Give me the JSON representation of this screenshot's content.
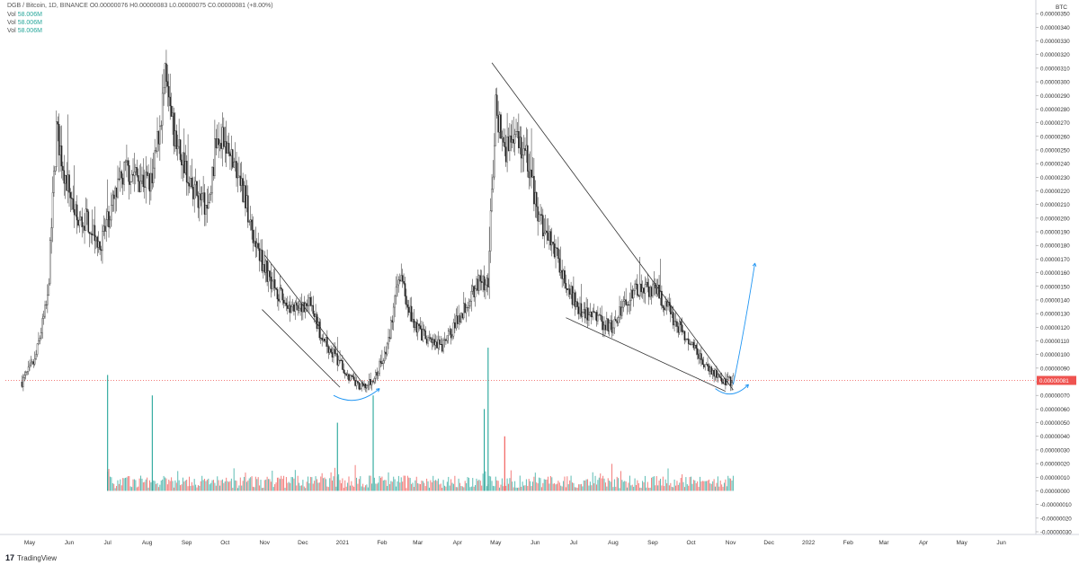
{
  "header": {
    "symbol_line": "DGB / Bitcoin, 1D, BINANCE",
    "ohlc": "O0.00000076  H0.00000083  L0.00000075  C0.00000081  (+8.00%)",
    "vol_rows": [
      {
        "label": "Vol",
        "value": "58.006M"
      },
      {
        "label": "Vol",
        "value": "58.006M"
      },
      {
        "label": "Vol",
        "value": "58.006M"
      }
    ]
  },
  "branding": {
    "logo": "17",
    "name": "TradingView"
  },
  "colors": {
    "up": "#26a69a",
    "down": "#ef5350",
    "candle": "#222222",
    "annotation": "#2196f3",
    "price_label": "#ef5350",
    "trendline": "#333333"
  },
  "chart_data": {
    "type": "candlestick",
    "quote_currency": "BTC",
    "price_axis": {
      "min": -3e-07,
      "max": 3.6e-06,
      "ticks": [
        "0.00000350",
        "0.00000340",
        "0.00000330",
        "0.00000320",
        "0.00000310",
        "0.00000300",
        "0.00000290",
        "0.00000280",
        "0.00000270",
        "0.00000260",
        "0.00000250",
        "0.00000240",
        "0.00000230",
        "0.00000220",
        "0.00000210",
        "0.00000200",
        "0.00000190",
        "0.00000180",
        "0.00000170",
        "0.00000160",
        "0.00000150",
        "0.00000140",
        "0.00000130",
        "0.00000120",
        "0.00000110",
        "0.00000100",
        "0.00000090",
        "0.00000080",
        "0.00000070",
        "0.00000060",
        "0.00000050",
        "0.00000040",
        "0.00000030",
        "0.00000020",
        "0.00000010",
        "0.00000000",
        "-0.00000010",
        "-0.00000020",
        "-0.00000030"
      ]
    },
    "current_price": {
      "value": 8.1e-07,
      "label": "0.00000081"
    },
    "x_axis_labels": [
      "May",
      "Jun",
      "Jul",
      "Aug",
      "Sep",
      "Oct",
      "Nov",
      "Dec",
      "2021",
      "Feb",
      "Mar",
      "Apr",
      "May",
      "Jun",
      "Jul",
      "Aug",
      "Sep",
      "Oct",
      "Nov",
      "Dec",
      "2022",
      "Feb",
      "Mar",
      "Apr",
      "May",
      "Jun"
    ],
    "x_axis_start": "2020-05-01",
    "price_path": [
      [
        "2020-04-25",
        8e-07
      ],
      [
        "2020-05-05",
        9.5e-07
      ],
      [
        "2020-05-15",
        1.4e-06
      ],
      [
        "2020-05-22",
        2.65e-06
      ],
      [
        "2020-05-28",
        2.35e-06
      ],
      [
        "2020-06-08",
        1.95e-06
      ],
      [
        "2020-06-15",
        2e-06
      ],
      [
        "2020-06-25",
        1.8e-06
      ],
      [
        "2020-07-05",
        2.1e-06
      ],
      [
        "2020-07-15",
        2.35e-06
      ],
      [
        "2020-07-25",
        2.3e-06
      ],
      [
        "2020-08-05",
        2.25e-06
      ],
      [
        "2020-08-15",
        3e-06
      ],
      [
        "2020-08-22",
        2.6e-06
      ],
      [
        "2020-09-01",
        2.35e-06
      ],
      [
        "2020-09-10",
        2.15e-06
      ],
      [
        "2020-09-18",
        2.05e-06
      ],
      [
        "2020-09-25",
        2.65e-06
      ],
      [
        "2020-10-05",
        2.45e-06
      ],
      [
        "2020-10-15",
        2.2e-06
      ],
      [
        "2020-10-25",
        1.8e-06
      ],
      [
        "2020-11-03",
        1.6e-06
      ],
      [
        "2020-11-15",
        1.4e-06
      ],
      [
        "2020-11-28",
        1.3e-06
      ],
      [
        "2020-12-05",
        1.4e-06
      ],
      [
        "2020-12-15",
        1.15e-06
      ],
      [
        "2020-12-25",
        1e-06
      ],
      [
        "2021-01-05",
        8.5e-07
      ],
      [
        "2021-01-15",
        7.5e-07
      ],
      [
        "2021-01-25",
        8e-07
      ],
      [
        "2021-02-05",
        1.05e-06
      ],
      [
        "2021-02-15",
        1.6e-06
      ],
      [
        "2021-02-25",
        1.25e-06
      ],
      [
        "2021-03-08",
        1.1e-06
      ],
      [
        "2021-03-20",
        1.05e-06
      ],
      [
        "2021-04-01",
        1.25e-06
      ],
      [
        "2021-04-15",
        1.5e-06
      ],
      [
        "2021-04-25",
        1.55e-06
      ],
      [
        "2021-05-01",
        2.8e-06
      ],
      [
        "2021-05-08",
        2.5e-06
      ],
      [
        "2021-05-15",
        2.65e-06
      ],
      [
        "2021-05-25",
        2.45e-06
      ],
      [
        "2021-06-05",
        1.95e-06
      ],
      [
        "2021-06-15",
        1.8e-06
      ],
      [
        "2021-06-25",
        1.5e-06
      ],
      [
        "2021-07-05",
        1.35e-06
      ],
      [
        "2021-07-20",
        1.25e-06
      ],
      [
        "2021-08-01",
        1.2e-06
      ],
      [
        "2021-08-10",
        1.4e-06
      ],
      [
        "2021-08-25",
        1.5e-06
      ],
      [
        "2021-09-05",
        1.45e-06
      ],
      [
        "2021-09-15",
        1.3e-06
      ],
      [
        "2021-09-28",
        1.1e-06
      ],
      [
        "2021-10-10",
        9.5e-07
      ],
      [
        "2021-10-25",
        8e-07
      ],
      [
        "2021-11-03",
        8.1e-07
      ]
    ],
    "volume_baseline": 0.0,
    "volume_spikes": [
      {
        "date": "2020-07-01",
        "height": 8.5e-07,
        "dir": "up"
      },
      {
        "date": "2020-08-05",
        "height": 7e-07,
        "dir": "up"
      },
      {
        "date": "2020-12-28",
        "height": 5e-07,
        "dir": "up"
      },
      {
        "date": "2021-01-25",
        "height": 7e-07,
        "dir": "up"
      },
      {
        "date": "2021-04-22",
        "height": 6e-07,
        "dir": "up"
      },
      {
        "date": "2021-04-25",
        "height": 1.05e-06,
        "dir": "up"
      },
      {
        "date": "2021-05-08",
        "height": 4e-07,
        "dir": "down"
      }
    ],
    "annotations": [
      {
        "type": "trendline",
        "name": "falling-channel-upper",
        "from": [
          "2020-11-01",
          1.73e-06
        ],
        "to": [
          "2021-01-20",
          7.5e-07
        ]
      },
      {
        "type": "trendline",
        "name": "falling-channel-lower",
        "from": [
          "2020-10-30",
          1.33e-06
        ],
        "to": [
          "2020-12-30",
          7.6e-07
        ]
      },
      {
        "type": "trendline",
        "name": "wedge-upper",
        "from": [
          "2021-04-28",
          3.14e-06
        ],
        "to": [
          "2021-11-03",
          7.4e-07
        ]
      },
      {
        "type": "trendline",
        "name": "wedge-lower",
        "from": [
          "2021-06-25",
          1.27e-06
        ],
        "to": [
          "2021-10-28",
          7.3e-07
        ]
      },
      {
        "type": "arc",
        "name": "rounding-bottom-1",
        "from": [
          "2020-12-25",
          7e-07
        ],
        "to": [
          "2021-01-30",
          7.5e-07
        ]
      },
      {
        "type": "arc",
        "name": "rounding-bottom-2",
        "from": [
          "2021-10-20",
          7.5e-07
        ],
        "to": [
          "2021-11-15",
          7.8e-07
        ]
      },
      {
        "type": "arrow",
        "name": "breakout-arrow",
        "from": [
          "2021-11-03",
          7.8e-07
        ],
        "to": [
          "2021-11-20",
          1.67e-06
        ]
      }
    ]
  }
}
